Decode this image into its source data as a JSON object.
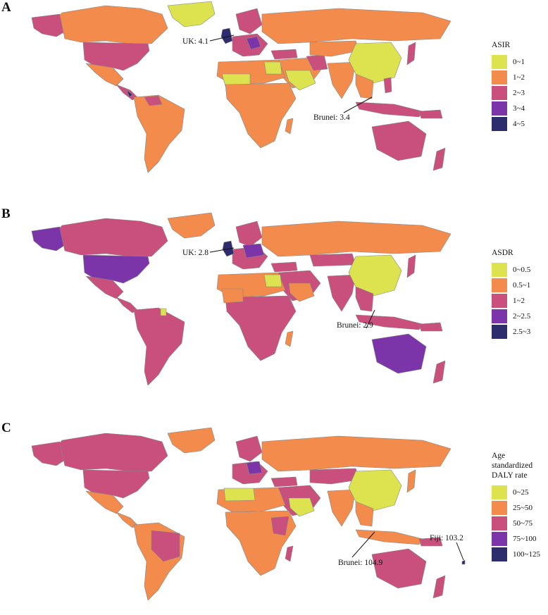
{
  "colors": {
    "c1": "#dce34f",
    "c2": "#f28b4b",
    "c3": "#c94f7c",
    "c4": "#7b35a8",
    "c5": "#2d2d6e",
    "border": "#888888",
    "background": "#ffffff"
  },
  "panels": [
    {
      "letter": "A",
      "legend_title": "ASIR",
      "legend": [
        {
          "label": "0~1",
          "color": "#dce34f"
        },
        {
          "label": "1~2",
          "color": "#f28b4b"
        },
        {
          "label": "2~3",
          "color": "#c94f7c"
        },
        {
          "label": "3~4",
          "color": "#7b35a8"
        },
        {
          "label": "4~5",
          "color": "#2d2d6e"
        }
      ],
      "annotations": [
        {
          "text": "UK: 4.1"
        },
        {
          "text": "Brunei: 3.4"
        }
      ]
    },
    {
      "letter": "B",
      "legend_title": "ASDR",
      "legend": [
        {
          "label": "0~0.5",
          "color": "#dce34f"
        },
        {
          "label": "0.5~1",
          "color": "#f28b4b"
        },
        {
          "label": "1~2",
          "color": "#c94f7c"
        },
        {
          "label": "2~2.5",
          "color": "#7b35a8"
        },
        {
          "label": "2.5~3",
          "color": "#2d2d6e"
        }
      ],
      "annotations": [
        {
          "text": "UK: 2.8"
        },
        {
          "text": "Brunei: 2.9"
        }
      ]
    },
    {
      "letter": "C",
      "legend_title_line1": "Age standardized",
      "legend_title_line2": "DALY rate",
      "legend": [
        {
          "label": "0~25",
          "color": "#dce34f"
        },
        {
          "label": "25~50",
          "color": "#f28b4b"
        },
        {
          "label": "50~75",
          "color": "#c94f7c"
        },
        {
          "label": "75~100",
          "color": "#7b35a8"
        },
        {
          "label": "100~125",
          "color": "#2d2d6e"
        }
      ],
      "annotations": [
        {
          "text": "Brunei: 104.9"
        },
        {
          "text": "Fiji: 103.2"
        }
      ]
    }
  ]
}
